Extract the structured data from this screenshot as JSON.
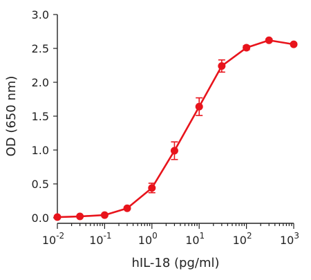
{
  "chart_data": {
    "type": "line",
    "xlabel": "hIL-18 (pg/ml)",
    "ylabel": "OD (650 nm)",
    "x_scale": "log",
    "xlim": [
      0.01,
      1000
    ],
    "ylim": [
      0,
      3.0
    ],
    "x_ticks": [
      {
        "value": 0.01,
        "base": "10",
        "exp": "-2"
      },
      {
        "value": 0.1,
        "base": "10",
        "exp": "-1"
      },
      {
        "value": 1,
        "base": "10",
        "exp": "0"
      },
      {
        "value": 10,
        "base": "10",
        "exp": "1"
      },
      {
        "value": 100,
        "base": "10",
        "exp": "2"
      },
      {
        "value": 1000,
        "base": "10",
        "exp": "3"
      }
    ],
    "y_ticks": [
      {
        "value": 0,
        "label": "0.0"
      },
      {
        "value": 0.5,
        "label": "0.5"
      },
      {
        "value": 1.0,
        "label": "1.0"
      },
      {
        "value": 1.5,
        "label": "1.5"
      },
      {
        "value": 2.0,
        "label": "2.0"
      },
      {
        "value": 2.5,
        "label": "2.5"
      },
      {
        "value": 3.0,
        "label": "3.0"
      }
    ],
    "grid": false,
    "series": [
      {
        "color": "#e8141c",
        "points": [
          {
            "x": 0.01,
            "y": 0.01,
            "err": 0
          },
          {
            "x": 0.03,
            "y": 0.02,
            "err": 0
          },
          {
            "x": 0.1,
            "y": 0.04,
            "err": 0
          },
          {
            "x": 0.3,
            "y": 0.14,
            "err": 0
          },
          {
            "x": 1,
            "y": 0.44,
            "err": 0.07
          },
          {
            "x": 3,
            "y": 0.99,
            "err": 0.13
          },
          {
            "x": 10,
            "y": 1.64,
            "err": 0.13
          },
          {
            "x": 30,
            "y": 2.24,
            "err": 0.09
          },
          {
            "x": 100,
            "y": 2.51,
            "err": 0.03
          },
          {
            "x": 300,
            "y": 2.62,
            "err": 0.02
          },
          {
            "x": 1000,
            "y": 2.56,
            "err": 0.02
          }
        ]
      }
    ]
  }
}
